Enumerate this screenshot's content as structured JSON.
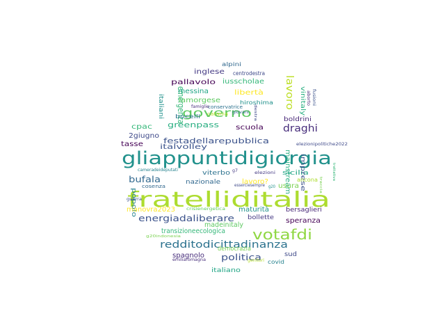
{
  "cloud": {
    "words": [
      {
        "t": "fratelliditalia",
        "c": "#addc30"
      },
      {
        "t": "gliappuntidigiorgia",
        "c": "#21918c"
      },
      {
        "t": "votafdi",
        "c": "#90d743"
      },
      {
        "t": "governo",
        "c": "#5ec962"
      },
      {
        "t": "redditodicittadinanza",
        "c": "#2c728e"
      },
      {
        "t": "festadellarepubblica",
        "c": "#3b528b"
      },
      {
        "t": "draghi",
        "c": "#472d7b"
      },
      {
        "t": "energiadaliberare",
        "c": "#3b528b"
      },
      {
        "t": "lavoro",
        "c": "#bddf26"
      },
      {
        "t": "politica",
        "c": "#3b528b"
      },
      {
        "t": "bufala",
        "c": "#31688e"
      },
      {
        "t": "greenpass",
        "c": "#28ae80"
      },
      {
        "t": "emergenza",
        "c": "#35b779"
      },
      {
        "t": "mainstream",
        "c": "#28ae80"
      },
      {
        "t": "italvolley",
        "c": "#3b528b"
      },
      {
        "t": "pallavolo",
        "c": "#440154"
      },
      {
        "t": "inglese",
        "c": "#443983"
      },
      {
        "t": "iusscholae",
        "c": "#35b779"
      },
      {
        "t": "messina",
        "c": "#21a585"
      },
      {
        "t": "libertà",
        "c": "#fde725"
      },
      {
        "t": "italiani",
        "c": "#21918c"
      },
      {
        "t": "lamorgese",
        "c": "#5ec962"
      },
      {
        "t": "scuola",
        "c": "#440154"
      },
      {
        "t": "cpac",
        "c": "#35b779"
      },
      {
        "t": "2giugno",
        "c": "#3e4989"
      },
      {
        "t": "tasse",
        "c": "#440154"
      },
      {
        "t": "vinitaly",
        "c": "#28ae80"
      },
      {
        "t": "hiroshima",
        "c": "#21918c"
      },
      {
        "t": "bocelli",
        "c": "#2c728e"
      },
      {
        "t": "boldrini",
        "c": "#482878"
      },
      {
        "t": "sicilia",
        "c": "#21a585"
      },
      {
        "t": "imprese",
        "c": "#3b528b"
      },
      {
        "t": "lavoro?",
        "c": "#fde725"
      },
      {
        "t": "usura",
        "c": "#7ad151"
      },
      {
        "t": "ancona",
        "c": "#addc30"
      },
      {
        "t": "popolo",
        "c": "#26828e"
      },
      {
        "t": "viterbo",
        "c": "#2c728e"
      },
      {
        "t": "nazionale",
        "c": "#31688e"
      },
      {
        "t": "maturità",
        "c": "#21918c"
      },
      {
        "t": "bersaglieri",
        "c": "#482878"
      },
      {
        "t": "speranza",
        "c": "#440154"
      },
      {
        "t": "bollette",
        "c": "#443983"
      },
      {
        "t": "manovra2023",
        "c": "#fde725"
      },
      {
        "t": "madeinitaly",
        "c": "#5ec962"
      },
      {
        "t": "transizioneecologica",
        "c": "#35b779"
      },
      {
        "t": "spagnolo",
        "c": "#472d7b"
      },
      {
        "t": "democrazia",
        "c": "#7ad151"
      },
      {
        "t": "sud",
        "c": "#3e4989"
      },
      {
        "t": "covid",
        "c": "#26828e"
      },
      {
        "t": "italiano",
        "c": "#21a585"
      },
      {
        "t": "alpini",
        "c": "#31688e"
      },
      {
        "t": "centrodestra",
        "c": "#3e4989"
      },
      {
        "t": "conservatrice",
        "c": "#2c728e"
      },
      {
        "t": "famiglie",
        "c": "#472d7b"
      },
      {
        "t": "catania",
        "c": "#b5de2b"
      },
      {
        "t": "giovani",
        "c": "#31688e"
      },
      {
        "t": "elezionipolitiche2022",
        "c": "#3e4989"
      },
      {
        "t": "cameradeideputati",
        "c": "#26828e"
      },
      {
        "t": "elezioni",
        "c": "#443983"
      },
      {
        "t": "cosenza",
        "c": "#31688e"
      },
      {
        "t": "esserciesempre",
        "c": "#3e4989"
      },
      {
        "t": "g20",
        "c": "#21918c"
      },
      {
        "t": "guerra",
        "c": "#3b528b"
      },
      {
        "t": "crisienergetica",
        "c": "#5ec962"
      },
      {
        "t": "g20indonesia",
        "c": "#7ad151"
      },
      {
        "t": "emiliaromagna",
        "c": "#472d7b"
      },
      {
        "t": "genitori",
        "c": "#b5de2b"
      },
      {
        "t": "destra",
        "c": "#3e4989"
      },
      {
        "t": "aborto",
        "c": "#482878"
      },
      {
        "t": "fusioni",
        "c": "#3b528b"
      },
      {
        "t": "trattativa",
        "c": "#35b779"
      },
      {
        "t": "g7",
        "c": "#443983"
      },
      {
        "t": "traccia",
        "c": "#7ad151"
      }
    ]
  }
}
